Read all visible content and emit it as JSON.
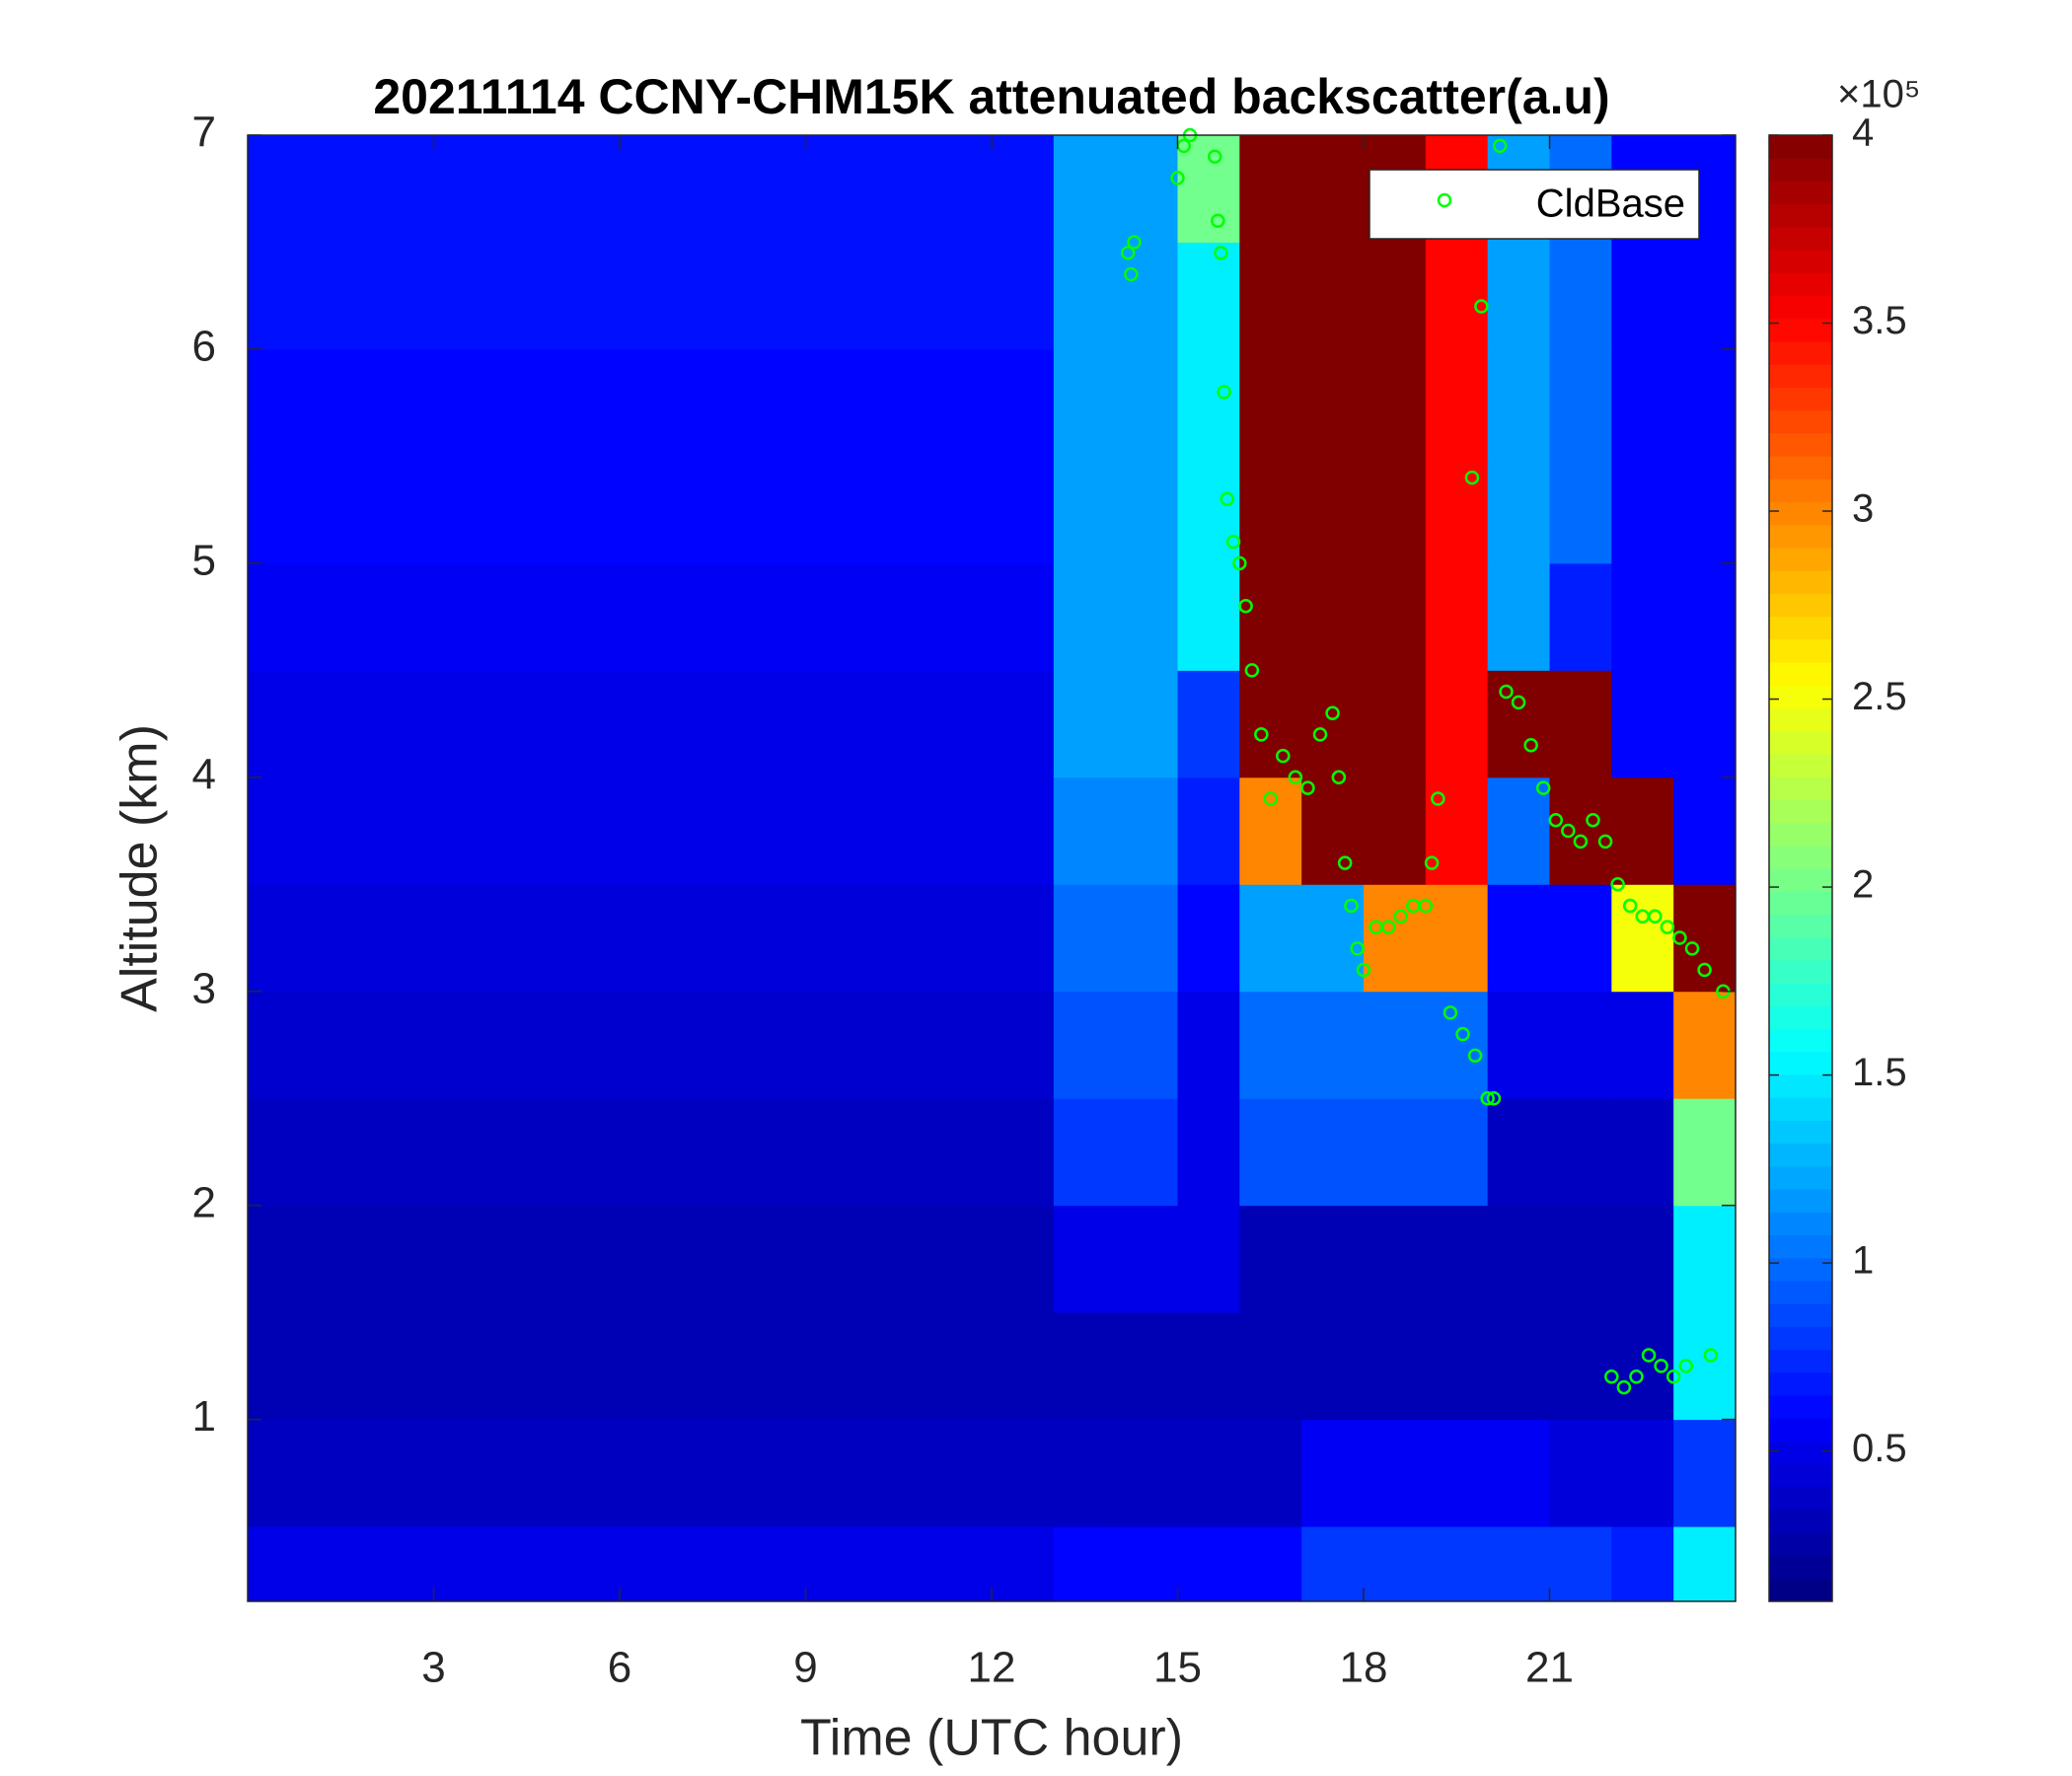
{
  "chart_data": {
    "type": "heatmap",
    "title": "20211114 CCNY-CHM15K attenuated backscatter(a.u)",
    "x_label": "Time (UTC hour)",
    "y_label": "Altitude (km)",
    "xlim": [
      0,
      24
    ],
    "ylim": [
      0.15,
      7
    ],
    "xticks": [
      3,
      6,
      9,
      12,
      15,
      18,
      21
    ],
    "yticks": [
      1,
      2,
      3,
      4,
      5,
      6,
      7
    ],
    "x_bins": [
      0,
      1,
      2,
      3,
      4,
      5,
      6,
      7,
      8,
      9,
      10,
      11,
      12,
      13,
      14,
      15,
      16,
      17,
      18,
      19,
      20,
      21,
      22,
      23,
      24
    ],
    "y_bins": [
      0.15,
      0.5,
      1,
      1.5,
      2,
      2.5,
      3,
      3.5,
      4,
      4.5,
      5,
      5.5,
      6,
      6.5,
      7
    ],
    "colormap": "jet",
    "clim": [
      0.1,
      4
    ],
    "colorbar_ticks": [
      0.5,
      1,
      1.5,
      2,
      2.5,
      3,
      3.5,
      4
    ],
    "colorbar_scale_label": "×10⁵",
    "values": [
      [
        0.5,
        0.5,
        0.5,
        0.5,
        0.5,
        0.5,
        0.5,
        0.5,
        0.5,
        0.5,
        0.5,
        0.5,
        0.5,
        0.6,
        0.6,
        0.6,
        0.6,
        0.8,
        0.8,
        0.8,
        0.8,
        0.8,
        0.7,
        1.5
      ],
      [
        0.35,
        0.35,
        0.35,
        0.35,
        0.35,
        0.35,
        0.35,
        0.35,
        0.35,
        0.35,
        0.35,
        0.35,
        0.35,
        0.35,
        0.35,
        0.35,
        0.35,
        0.55,
        0.55,
        0.55,
        0.55,
        0.45,
        0.45,
        0.8
      ],
      [
        0.3,
        0.3,
        0.3,
        0.3,
        0.3,
        0.3,
        0.3,
        0.3,
        0.3,
        0.3,
        0.3,
        0.3,
        0.3,
        0.3,
        0.3,
        0.3,
        0.3,
        0.3,
        0.3,
        0.3,
        0.3,
        0.3,
        0.3,
        1.5
      ],
      [
        0.3,
        0.3,
        0.3,
        0.3,
        0.3,
        0.3,
        0.3,
        0.3,
        0.3,
        0.3,
        0.3,
        0.3,
        0.3,
        0.5,
        0.5,
        0.5,
        0.3,
        0.3,
        0.3,
        0.3,
        0.3,
        0.3,
        0.3,
        1.5
      ],
      [
        0.35,
        0.35,
        0.35,
        0.35,
        0.35,
        0.35,
        0.35,
        0.35,
        0.35,
        0.35,
        0.35,
        0.35,
        0.35,
        0.8,
        0.8,
        0.5,
        0.9,
        0.9,
        0.9,
        0.9,
        0.35,
        0.35,
        0.35,
        2
      ],
      [
        0.4,
        0.4,
        0.4,
        0.4,
        0.4,
        0.4,
        0.4,
        0.4,
        0.4,
        0.4,
        0.4,
        0.4,
        0.4,
        0.9,
        0.9,
        0.5,
        1,
        1,
        1,
        1,
        0.5,
        0.5,
        0.5,
        3
      ],
      [
        0.45,
        0.45,
        0.45,
        0.45,
        0.45,
        0.45,
        0.45,
        0.45,
        0.45,
        0.45,
        0.45,
        0.45,
        0.45,
        1,
        1,
        0.6,
        1.2,
        1.2,
        3,
        3,
        0.6,
        0.6,
        2.5,
        4
      ],
      [
        0.5,
        0.5,
        0.5,
        0.5,
        0.5,
        0.5,
        0.5,
        0.5,
        0.5,
        0.5,
        0.5,
        0.5,
        0.5,
        1.1,
        1.1,
        0.7,
        3,
        4,
        4,
        3.5,
        1,
        4,
        4,
        0.6
      ],
      [
        0.5,
        0.5,
        0.5,
        0.5,
        0.5,
        0.5,
        0.5,
        0.5,
        0.5,
        0.5,
        0.5,
        0.5,
        0.5,
        1.2,
        1.2,
        0.8,
        4,
        4,
        4,
        3.5,
        4,
        4,
        0.6,
        0.6
      ],
      [
        0.55,
        0.55,
        0.55,
        0.55,
        0.55,
        0.55,
        0.55,
        0.55,
        0.55,
        0.55,
        0.55,
        0.55,
        0.55,
        1.2,
        1.2,
        1.5,
        4,
        4,
        4,
        3.5,
        1.2,
        0.7,
        0.6,
        0.6
      ],
      [
        0.6,
        0.6,
        0.6,
        0.6,
        0.6,
        0.6,
        0.6,
        0.6,
        0.6,
        0.6,
        0.6,
        0.6,
        0.6,
        1.2,
        1.2,
        1.5,
        4,
        4,
        4,
        3.5,
        1.2,
        1,
        0.6,
        0.6
      ],
      [
        0.6,
        0.6,
        0.6,
        0.6,
        0.6,
        0.6,
        0.6,
        0.6,
        0.6,
        0.6,
        0.6,
        0.6,
        0.6,
        1.2,
        1.2,
        1.5,
        4,
        4,
        4,
        3.5,
        1.2,
        1,
        0.6,
        0.6
      ],
      [
        0.65,
        0.65,
        0.65,
        0.65,
        0.65,
        0.65,
        0.65,
        0.65,
        0.65,
        0.65,
        0.65,
        0.65,
        0.65,
        1.2,
        1.2,
        1.5,
        4,
        4,
        4,
        3.5,
        1.2,
        1,
        0.6,
        0.6
      ],
      [
        0.65,
        0.65,
        0.65,
        0.65,
        0.65,
        0.65,
        0.65,
        0.65,
        0.65,
        0.65,
        0.65,
        0.65,
        0.65,
        1.2,
        1.2,
        2,
        4,
        4,
        4,
        3.5,
        1.2,
        1,
        0.6,
        0.6
      ]
    ],
    "series": [
      {
        "name": "CldBase",
        "color": "#00ff00",
        "marker": "circle",
        "x": [
          14.2,
          14.25,
          14.3,
          15.0,
          15.1,
          15.2,
          15.6,
          15.65,
          15.7,
          15.75,
          15.8,
          15.9,
          16.0,
          16.1,
          16.2,
          16.35,
          16.5,
          16.7,
          16.9,
          17.1,
          17.3,
          17.5,
          17.6,
          17.7,
          17.8,
          17.9,
          18.0,
          18.2,
          18.4,
          18.6,
          18.8,
          19.0,
          19.1,
          19.2,
          19.4,
          19.6,
          19.8,
          20.0,
          20.1,
          19.75,
          19.9,
          20.2,
          20.3,
          20.5,
          20.7,
          20.9,
          21.1,
          21.3,
          21.5,
          21.7,
          21.9,
          22.1,
          22.3,
          22.5,
          22.7,
          22.9,
          23.1,
          23.3,
          23.5,
          23.8,
          22.0,
          22.2,
          22.4,
          22.6,
          22.8,
          23.0,
          23.2,
          23.6
        ],
        "y": [
          6.45,
          6.35,
          6.5,
          6.8,
          6.95,
          7.0,
          6.9,
          6.6,
          6.45,
          5.8,
          5.3,
          5.1,
          5.0,
          4.8,
          4.5,
          4.2,
          3.9,
          4.1,
          4.0,
          3.95,
          4.2,
          4.3,
          4.0,
          3.6,
          3.4,
          3.2,
          3.1,
          3.3,
          3.3,
          3.35,
          3.4,
          3.4,
          3.6,
          3.9,
          2.9,
          2.8,
          2.7,
          2.5,
          2.5,
          5.4,
          6.2,
          6.95,
          4.4,
          4.35,
          4.15,
          3.95,
          3.8,
          3.75,
          3.7,
          3.8,
          3.7,
          3.5,
          3.4,
          3.35,
          3.35,
          3.3,
          3.25,
          3.2,
          3.1,
          3.0,
          1.2,
          1.15,
          1.2,
          1.3,
          1.25,
          1.2,
          1.25,
          1.3
        ]
      }
    ],
    "legend": "upper right"
  }
}
